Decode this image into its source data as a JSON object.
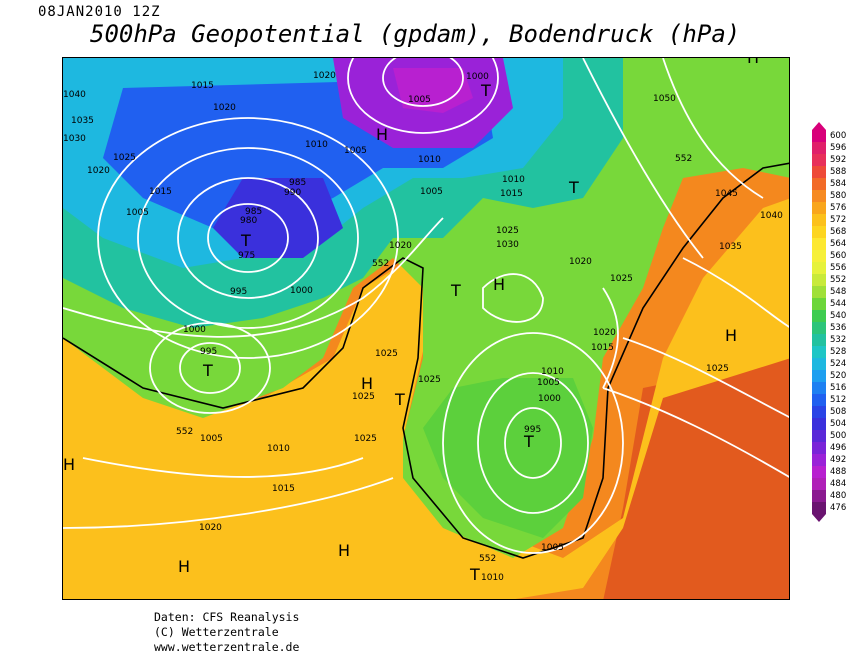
{
  "header": {
    "date": "08JAN2010 12Z",
    "title": "500hPa Geopotential (gpdam), Bodendruck (hPa)"
  },
  "colorbar": {
    "levels": [
      "600",
      "596",
      "592",
      "588",
      "584",
      "580",
      "576",
      "572",
      "568",
      "564",
      "560",
      "556",
      "552",
      "548",
      "544",
      "540",
      "536",
      "532",
      "528",
      "524",
      "520",
      "516",
      "512",
      "508",
      "504",
      "500",
      "496",
      "492",
      "488",
      "484",
      "480",
      "476"
    ],
    "colors": [
      "#d8007a",
      "#e0206a",
      "#e8305a",
      "#ee4a38",
      "#f26b28",
      "#f68a22",
      "#f9a61c",
      "#fcc11c",
      "#fdd520",
      "#fde830",
      "#f6f03a",
      "#e6f23c",
      "#c8ea3a",
      "#a0e038",
      "#6cd63a",
      "#3ecc50",
      "#2cc57a",
      "#22c2a0",
      "#1ec6c6",
      "#1eb8e0",
      "#1e9ff0",
      "#1e80f2",
      "#2060f0",
      "#2a44e6",
      "#3a30dc",
      "#5a28d8",
      "#7a24d8",
      "#9a22d8",
      "#b820d0",
      "#b020b8",
      "#8a1a90",
      "#6a1470"
    ]
  },
  "map_labels": {
    "isobars": [
      "1020",
      "1015",
      "1020",
      "1005",
      "1000",
      "1040",
      "1035",
      "1030",
      "1025",
      "1020",
      "1015",
      "1005",
      "985",
      "980",
      "975",
      "995",
      "985",
      "990",
      "1010",
      "1005",
      "1000",
      "995",
      "1010",
      "1005",
      "1015",
      "1010",
      "1025",
      "1030",
      "1020",
      "1020",
      "1025",
      "1050",
      "1045",
      "1040",
      "1035",
      "1025",
      "1020",
      "1015",
      "1010",
      "1005",
      "1000",
      "995",
      "1025",
      "1025",
      "1025",
      "1005",
      "1010",
      "1015",
      "1020",
      "1005",
      "1010",
      "1025",
      "1000"
    ],
    "centers": [
      "T",
      "H",
      "T",
      "T",
      "T",
      "T",
      "H",
      "H",
      "H",
      "T",
      "T",
      "H",
      "H",
      "H",
      "H",
      "T"
    ],
    "contour_552": [
      "552",
      "552",
      "552",
      "552"
    ]
  },
  "footer": {
    "line1": "Daten: CFS Reanalysis",
    "line2": "(C) Wetterzentrale",
    "line3": "www.wetterzentrale.de"
  }
}
